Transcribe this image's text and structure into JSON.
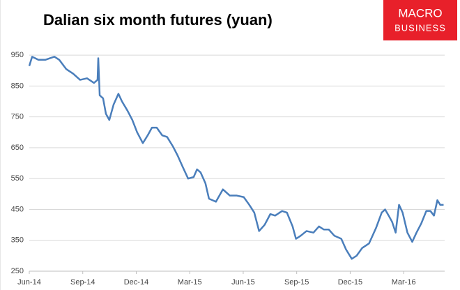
{
  "chart_data": {
    "type": "line",
    "title": "Dalian six month futures (yuan)",
    "x": [
      0,
      0.16,
      0.51,
      0.9,
      1.41,
      1.68,
      2.07,
      2.46,
      2.85,
      3.24,
      3.63,
      3.83,
      3.87,
      3.95,
      4.14,
      4.3,
      4.49,
      4.73,
      5,
      5.2,
      5.51,
      5.78,
      6.05,
      6.37,
      6.64,
      6.88,
      7.15,
      7.46,
      7.73,
      8.05,
      8.32,
      8.59,
      8.91,
      9.22,
      9.41,
      9.61,
      9.88,
      10.08,
      10.47,
      10.86,
      11.25,
      11.64,
      12.03,
      12.34,
      12.62,
      12.89,
      13.2,
      13.52,
      13.79,
      14.18,
      14.45,
      14.77,
      14.96,
      15.23,
      15.55,
      15.94,
      16.25,
      16.52,
      16.8,
      17.11,
      17.5,
      17.77,
      18.09,
      18.36,
      18.67,
      19.06,
      19.45,
      19.77,
      19.96,
      20.16,
      20.35,
      20.55,
      20.74,
      20.94,
      21.21,
      21.48,
      21.72,
      21.99,
      22.27,
      22.5,
      22.7,
      22.89,
      23.05,
      23.24
    ],
    "series": [
      {
        "color": "#4a7ebb",
        "values": [
          915,
          945,
          935,
          935,
          945,
          935,
          905,
          890,
          870,
          875,
          860,
          870,
          940,
          820,
          810,
          760,
          740,
          790,
          825,
          800,
          770,
          740,
          700,
          665,
          690,
          715,
          715,
          690,
          685,
          655,
          625,
          590,
          550,
          555,
          580,
          570,
          535,
          485,
          475,
          515,
          495,
          495,
          490,
          465,
          440,
          380,
          400,
          435,
          430,
          445,
          440,
          395,
          355,
          365,
          380,
          375,
          395,
          385,
          385,
          365,
          355,
          320,
          290,
          300,
          325,
          340,
          390,
          440,
          450,
          430,
          410,
          375,
          465,
          440,
          375,
          345,
          375,
          405,
          445,
          445,
          430,
          480,
          465,
          465
        ]
      }
    ],
    "xlim": [
      0,
      23.3
    ],
    "xticks": [
      {
        "value": 0,
        "label": "Jun-14"
      },
      {
        "value": 3,
        "label": "Sep-14"
      },
      {
        "value": 6,
        "label": "Dec-14"
      },
      {
        "value": 9,
        "label": "Mar-15"
      },
      {
        "value": 12,
        "label": "Jun-15"
      },
      {
        "value": 15,
        "label": "Sep-15"
      },
      {
        "value": 18,
        "label": "Dec-15"
      },
      {
        "value": 21,
        "label": "Mar-16"
      }
    ],
    "ylim": [
      250,
      1000
    ],
    "yticks": [
      250,
      350,
      450,
      550,
      650,
      750,
      850,
      950
    ],
    "grid": true
  },
  "logo": {
    "line1": "MACRO",
    "line2": "BUSINESS"
  }
}
